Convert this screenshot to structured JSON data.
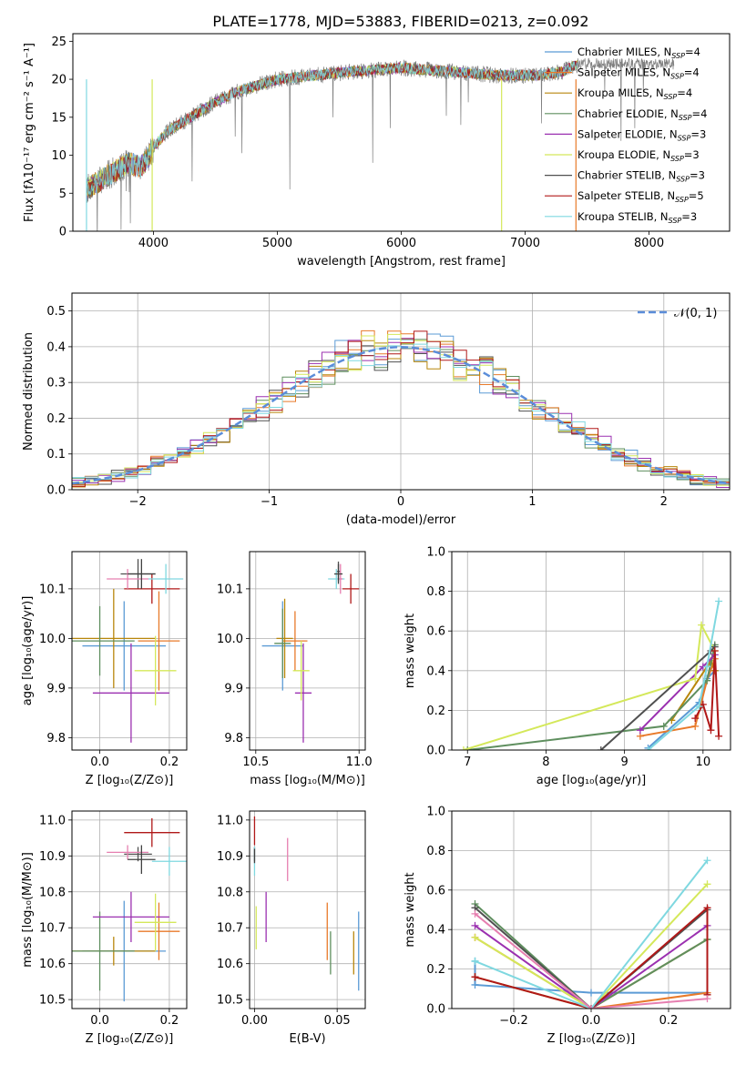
{
  "figure": {
    "title": "PLATE=1778, MJD=53883, FIBERID=0213, z=0.092"
  },
  "models": [
    {
      "label": "Chabrier MILES, N",
      "n": "4",
      "color": "#5b9bd5"
    },
    {
      "label": "Salpeter MILES, N",
      "n": "4",
      "color": "#e87a2a"
    },
    {
      "label": "Kroupa MILES, N",
      "n": "4",
      "color": "#b8860b"
    },
    {
      "label": "Chabrier ELODIE, N",
      "n": "4",
      "color": "#5f8f5f"
    },
    {
      "label": "Salpeter ELODIE, N",
      "n": "3",
      "color": "#9b30b0"
    },
    {
      "label": "Kroupa ELODIE, N",
      "n": "3",
      "color": "#d4e85a"
    },
    {
      "label": "Chabrier STELIB, N",
      "n": "3",
      "color": "#505050"
    },
    {
      "label": "Salpeter STELIB, N",
      "n": "5",
      "color": "#b01818"
    },
    {
      "label": "Kroupa STELIB, N",
      "n": "3",
      "color": "#7fd8e0"
    }
  ],
  "chart_data": [
    {
      "id": "spectrum",
      "type": "line",
      "xlabel": "wavelength [Angstrom, rest frame]",
      "ylabel": "Flux [fλ10⁻¹⁷ erg cm⁻² s⁻¹ A⁻¹]",
      "xlim": [
        3350,
        8650
      ],
      "ylim": [
        0,
        26
      ],
      "xticks": [
        "4000",
        "5000",
        "6000",
        "7000",
        "8000"
      ],
      "yticks": [
        "0",
        "5",
        "10",
        "15",
        "20",
        "25"
      ],
      "continuum": {
        "x": [
          3460,
          3600,
          3800,
          3900,
          3950,
          4000,
          4100,
          4300,
          4500,
          4700,
          5000,
          5300,
          5600,
          6000,
          6400,
          6800,
          7100,
          7300,
          7420
        ],
        "y": [
          5.5,
          7,
          9,
          8.5,
          9.5,
          11,
          13,
          15,
          17,
          18.5,
          20,
          20.5,
          21,
          21.5,
          21,
          20.5,
          20.5,
          21,
          22
        ]
      },
      "model_extent": [
        3460,
        7420
      ],
      "data_extent": [
        3460,
        8200
      ]
    },
    {
      "id": "residuals",
      "type": "histogram",
      "xlabel": "(data-model)/error",
      "ylabel": "Normed distribution",
      "xlim": [
        -2.5,
        2.5
      ],
      "ylim": [
        0,
        0.55
      ],
      "xticks": [
        "−2",
        "−1",
        "0",
        "1",
        "2"
      ],
      "yticks": [
        "0.0",
        "0.1",
        "0.2",
        "0.3",
        "0.4",
        "0.5"
      ],
      "bin_width": 0.1,
      "legend": "𝒩(0, 1)",
      "grid": true
    },
    {
      "id": "age_vs_Z",
      "type": "scatter",
      "xlabel": "Z [log₁₀(Z/Z⊙)]",
      "ylabel": "age  [log₁₀(age/yr)]",
      "xlim": [
        -0.08,
        0.25
      ],
      "ylim": [
        9.775,
        10.175
      ],
      "xticks": [
        "0.0",
        "0.2"
      ],
      "yticks": [
        "9.8",
        "9.9",
        "10.0",
        "10.1"
      ],
      "points": [
        {
          "x": 0.07,
          "xerr": 0.12,
          "y": 9.985,
          "yerr": 0.09
        },
        {
          "x": 0.17,
          "xerr": 0.06,
          "y": 9.995,
          "yerr": 0.1
        },
        {
          "x": 0.04,
          "xerr": 0.12,
          "y": 10.0,
          "yerr": 0.1
        },
        {
          "x": 0.0,
          "xerr": 0.1,
          "y": 9.995,
          "yerr": 0.07
        },
        {
          "x": 0.09,
          "xerr": 0.11,
          "y": 9.89,
          "yerr": 0.1
        },
        {
          "x": 0.16,
          "xerr": 0.06,
          "y": 9.935,
          "yerr": 0.07
        },
        {
          "x": 0.11,
          "xerr": 0.05,
          "y": 10.13,
          "yerr": 0.03
        },
        {
          "x": 0.15,
          "xerr": 0.08,
          "y": 10.1,
          "yerr": 0.03
        },
        {
          "x": 0.19,
          "xerr": 0.05,
          "y": 10.12,
          "yerr": 0.03
        },
        {
          "x": 0.08,
          "xerr": 0.06,
          "y": 10.12,
          "yerr": 0.02
        },
        {
          "x": 0.12,
          "xerr": 0.04,
          "y": 10.13,
          "yerr": 0.03
        }
      ]
    },
    {
      "id": "age_vs_mass",
      "type": "scatter",
      "xlabel": "mass [log₁₀(M/M⊙)]",
      "ylabel": "",
      "xlim": [
        10.47,
        11.03
      ],
      "ylim": [
        9.775,
        10.175
      ],
      "xticks": [
        "10.5",
        "11.0"
      ],
      "yticks": [
        "9.8",
        "9.9",
        "10.0",
        "10.1"
      ],
      "points": [
        {
          "x": 10.63,
          "xerr": 0.1,
          "y": 9.985,
          "yerr": 0.09
        },
        {
          "x": 10.69,
          "xerr": 0.06,
          "y": 9.995,
          "yerr": 0.06
        },
        {
          "x": 10.64,
          "xerr": 0.04,
          "y": 10.0,
          "yerr": 0.08
        },
        {
          "x": 10.63,
          "xerr": 0.04,
          "y": 9.99,
          "yerr": 0.07
        },
        {
          "x": 10.73,
          "xerr": 0.04,
          "y": 9.89,
          "yerr": 0.1
        },
        {
          "x": 10.72,
          "xerr": 0.04,
          "y": 9.935,
          "yerr": 0.06
        },
        {
          "x": 10.9,
          "xerr": 0.01,
          "y": 10.135,
          "yerr": 0.02
        },
        {
          "x": 10.96,
          "xerr": 0.04,
          "y": 10.1,
          "yerr": 0.03
        },
        {
          "x": 10.89,
          "xerr": 0.04,
          "y": 10.12,
          "yerr": 0.02
        },
        {
          "x": 10.91,
          "xerr": 0.01,
          "y": 10.12,
          "yerr": 0.03
        },
        {
          "x": 10.9,
          "xerr": 0.02,
          "y": 10.13,
          "yerr": 0.02
        }
      ]
    },
    {
      "id": "mass_weight_vs_age",
      "type": "line",
      "xlabel": "age  [log₁₀(age/yr)]",
      "ylabel": "mass weight",
      "xlim": [
        6.8,
        10.35
      ],
      "ylim": [
        0,
        1.0
      ],
      "xticks": [
        "7",
        "8",
        "9",
        "10"
      ],
      "yticks": [
        "0.0",
        "0.2",
        "0.4",
        "0.6",
        "0.8",
        "1.0"
      ],
      "series": [
        {
          "x": [
            9.3,
            9.95,
            10.05,
            10.15
          ],
          "y": [
            0.01,
            0.24,
            0.36,
            0.4
          ]
        },
        {
          "x": [
            9.2,
            9.9,
            10.05,
            10.15
          ],
          "y": [
            0.07,
            0.12,
            0.35,
            0.46
          ]
        },
        {
          "x": [
            9.6,
            10.1,
            10.15
          ],
          "y": [
            0.15,
            0.45,
            0.4
          ]
        },
        {
          "x": [
            7.0,
            9.5,
            10.05,
            10.15
          ],
          "y": [
            0.0,
            0.12,
            0.35,
            0.53
          ]
        },
        {
          "x": [
            9.2,
            10.0,
            10.15
          ],
          "y": [
            0.1,
            0.42,
            0.48
          ]
        },
        {
          "x": [
            6.95,
            9.9,
            9.98,
            10.15
          ],
          "y": [
            0.0,
            0.36,
            0.63,
            0.5
          ]
        },
        {
          "x": [
            8.7,
            10.1,
            10.15
          ],
          "y": [
            0.0,
            0.5,
            0.52
          ]
        },
        {
          "x": [
            9.9,
            10.0,
            10.1,
            10.15,
            10.2
          ],
          "y": [
            0.16,
            0.23,
            0.1,
            0.5,
            0.07
          ]
        },
        {
          "x": [
            9.3,
            9.95,
            10.05,
            10.2
          ],
          "y": [
            0.0,
            0.22,
            0.42,
            0.75
          ]
        }
      ]
    },
    {
      "id": "mass_vs_Z",
      "type": "scatter",
      "xlabel": "Z [log₁₀(Z/Z⊙)]",
      "ylabel": "mass [log₁₀(M/M⊙)]",
      "xlim": [
        -0.08,
        0.25
      ],
      "ylim": [
        10.475,
        11.025
      ],
      "xticks": [
        "0.0",
        "0.2"
      ],
      "yticks": [
        "10.5",
        "10.6",
        "10.7",
        "10.8",
        "10.9",
        "11.0"
      ],
      "points": [
        {
          "x": 0.07,
          "xerr": 0.12,
          "y": 10.635,
          "yerr": 0.14
        },
        {
          "x": 0.17,
          "xerr": 0.06,
          "y": 10.69,
          "yerr": 0.08
        },
        {
          "x": 0.04,
          "xerr": 0.12,
          "y": 10.635,
          "yerr": 0.04
        },
        {
          "x": 0.0,
          "xerr": 0.1,
          "y": 10.635,
          "yerr": 0.11
        },
        {
          "x": 0.09,
          "xerr": 0.11,
          "y": 10.73,
          "yerr": 0.07
        },
        {
          "x": 0.16,
          "xerr": 0.06,
          "y": 10.715,
          "yerr": 0.08
        },
        {
          "x": 0.11,
          "xerr": 0.04,
          "y": 10.905,
          "yerr": 0.02
        },
        {
          "x": 0.15,
          "xerr": 0.08,
          "y": 10.965,
          "yerr": 0.04
        },
        {
          "x": 0.2,
          "xerr": 0.05,
          "y": 10.885,
          "yerr": 0.04
        },
        {
          "x": 0.08,
          "xerr": 0.06,
          "y": 10.91,
          "yerr": 0.02
        },
        {
          "x": 0.12,
          "xerr": 0.04,
          "y": 10.89,
          "yerr": 0.04
        }
      ]
    },
    {
      "id": "mass_vs_ebv",
      "type": "scatter",
      "xlabel": "E(B-V)",
      "ylabel": "",
      "xlim": [
        -0.003,
        0.067
      ],
      "ylim": [
        10.475,
        11.025
      ],
      "xticks": [
        "0.00",
        "0.05"
      ],
      "yticks": [
        "10.5",
        "10.6",
        "10.7",
        "10.8",
        "10.9",
        "11.0"
      ],
      "points": [
        {
          "x": 0.063,
          "y": 10.635,
          "yerr": 0.11
        },
        {
          "x": 0.044,
          "y": 10.69,
          "yerr": 0.08
        },
        {
          "x": 0.06,
          "y": 10.63,
          "yerr": 0.06
        },
        {
          "x": 0.046,
          "y": 10.63,
          "yerr": 0.06
        },
        {
          "x": 0.007,
          "y": 10.73,
          "yerr": 0.07
        },
        {
          "x": 0.001,
          "y": 10.7,
          "yerr": 0.06
        },
        {
          "x": 0.0,
          "y": 10.905,
          "yerr": 0.02
        },
        {
          "x": 0.0,
          "y": 10.97,
          "yerr": 0.04
        },
        {
          "x": 0.0,
          "y": 10.885,
          "yerr": 0.04
        },
        {
          "x": 0.02,
          "y": 10.89,
          "yerr": 0.06
        },
        {
          "x": 0.0,
          "y": 10.9,
          "yerr": 0.02
        }
      ]
    },
    {
      "id": "mass_weight_vs_Z",
      "type": "line",
      "xlabel": "Z [log₁₀(Z/Z⊙)]",
      "ylabel": "mass weight",
      "xlim": [
        -0.36,
        0.36
      ],
      "ylim": [
        0,
        1.0
      ],
      "xticks": [
        "−0.2",
        "0.0",
        "0.2"
      ],
      "yticks": [
        "0.0",
        "0.2",
        "0.4",
        "0.6",
        "0.8",
        "1.0"
      ],
      "series": [
        {
          "x": [
            -0.3,
            -0.3,
            0.0,
            0.3
          ],
          "y": [
            0.24,
            0.12,
            0.08,
            0.08
          ]
        },
        {
          "x": [
            -0.3,
            -0.3,
            0.0,
            0.3
          ],
          "y": [
            0.36,
            0.36,
            0.0,
            0.08
          ]
        },
        {
          "x": [
            -0.3,
            0.0,
            0.3
          ],
          "y": [
            0.16,
            0.0,
            0.35
          ]
        },
        {
          "x": [
            -0.3,
            0.0,
            0.3
          ],
          "y": [
            0.53,
            0.0,
            0.35
          ]
        },
        {
          "x": [
            -0.3,
            0.0,
            0.3
          ],
          "y": [
            0.42,
            0.0,
            0.42
          ]
        },
        {
          "x": [
            -0.3,
            0.0,
            0.3
          ],
          "y": [
            0.36,
            0.0,
            0.63
          ]
        },
        {
          "x": [
            -0.3,
            0.0,
            0.3
          ],
          "y": [
            0.51,
            0.0,
            0.5
          ]
        },
        {
          "x": [
            -0.3,
            -0.3,
            0.0,
            0.3,
            0.3
          ],
          "y": [
            0.16,
            0.16,
            0.0,
            0.51,
            0.07
          ]
        },
        {
          "x": [
            -0.3,
            -0.3,
            0.0,
            0.3
          ],
          "y": [
            0.24,
            0.24,
            0.0,
            0.75
          ]
        },
        {
          "x": [
            -0.3,
            0.0,
            0.3
          ],
          "y": [
            0.48,
            0.0,
            0.05
          ]
        }
      ]
    }
  ]
}
